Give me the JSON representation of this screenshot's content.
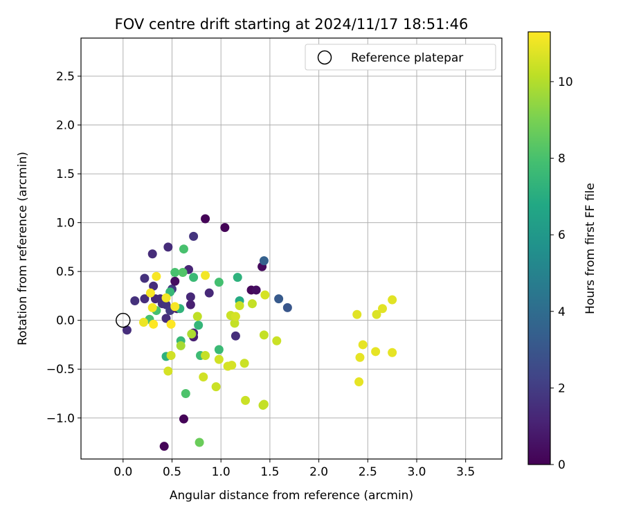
{
  "chart_data": {
    "type": "scatter",
    "title": "FOV centre drift starting at 2024/11/17 18:51:46",
    "xlabel": "Angular distance from reference (arcmin)",
    "ylabel": "Rotation from reference (arcmin)",
    "xlim": [
      -0.43,
      3.87
    ],
    "ylim": [
      -1.42,
      2.89
    ],
    "x_ticks": [
      0.0,
      0.5,
      1.0,
      1.5,
      2.0,
      2.5,
      3.0,
      3.5
    ],
    "x_tick_labels": [
      "0.0",
      "0.5",
      "1.0",
      "1.5",
      "2.0",
      "2.5",
      "3.0",
      "3.5"
    ],
    "y_ticks": [
      -1.0,
      -0.5,
      0.0,
      0.5,
      1.0,
      1.5,
      2.0,
      2.5
    ],
    "y_tick_labels": [
      "−1.0",
      "−0.5",
      "0.0",
      "0.5",
      "1.0",
      "1.5",
      "2.0",
      "2.5"
    ],
    "grid": true,
    "legend": {
      "placement": "top-right",
      "entries": [
        "Reference platepar"
      ]
    },
    "reference_point": {
      "name": "Reference platepar",
      "x": 0.0,
      "y": 0.0
    },
    "colorbar": {
      "label": "Hours from first FF file",
      "colormap": "viridis",
      "range": [
        0,
        11.3
      ],
      "ticks": [
        0,
        2,
        4,
        6,
        8,
        10
      ],
      "tick_labels": [
        "0",
        "2",
        "4",
        "6",
        "8",
        "10"
      ]
    },
    "points": [
      {
        "x": 0.04,
        "y": -0.1,
        "h": 1.5
      },
      {
        "x": 0.12,
        "y": 0.2,
        "h": 1.6
      },
      {
        "x": 0.22,
        "y": 0.43,
        "h": 1.6
      },
      {
        "x": 0.22,
        "y": 0.22,
        "h": 1.5
      },
      {
        "x": 0.3,
        "y": 0.68,
        "h": 1.4
      },
      {
        "x": 0.31,
        "y": 0.35,
        "h": 1.5
      },
      {
        "x": 0.33,
        "y": 0.22,
        "h": 1.3
      },
      {
        "x": 0.38,
        "y": 0.22,
        "h": 1.4
      },
      {
        "x": 0.4,
        "y": 0.17,
        "h": 1.6
      },
      {
        "x": 0.44,
        "y": 0.02,
        "h": 1.5
      },
      {
        "x": 0.46,
        "y": 0.75,
        "h": 1.4
      },
      {
        "x": 0.44,
        "y": 0.16,
        "h": 1.7
      },
      {
        "x": 0.48,
        "y": 0.1,
        "h": 1.9
      },
      {
        "x": 0.5,
        "y": 0.32,
        "h": 1.9
      },
      {
        "x": 0.53,
        "y": 0.4,
        "h": 0.4
      },
      {
        "x": 0.55,
        "y": 0.12,
        "h": 0.8
      },
      {
        "x": 0.67,
        "y": 0.52,
        "h": 1.2
      },
      {
        "x": 0.69,
        "y": 0.24,
        "h": 1.3
      },
      {
        "x": 0.69,
        "y": 0.16,
        "h": 1.0
      },
      {
        "x": 0.72,
        "y": 0.86,
        "h": 1.7
      },
      {
        "x": 0.72,
        "y": -0.17,
        "h": 1.0
      },
      {
        "x": 0.72,
        "y": -0.13,
        "h": 1.1
      },
      {
        "x": 0.84,
        "y": 1.04,
        "h": 0.1
      },
      {
        "x": 0.88,
        "y": 0.28,
        "h": 1.3
      },
      {
        "x": 1.04,
        "y": 0.95,
        "h": 0.1
      },
      {
        "x": 1.15,
        "y": -0.16,
        "h": 1.5
      },
      {
        "x": 1.31,
        "y": 0.31,
        "h": 0.2
      },
      {
        "x": 1.36,
        "y": 0.31,
        "h": 0.4
      },
      {
        "x": 1.42,
        "y": 0.55,
        "h": 0.3
      },
      {
        "x": 1.44,
        "y": 0.61,
        "h": 3.5
      },
      {
        "x": 1.59,
        "y": 0.22,
        "h": 3.2
      },
      {
        "x": 1.68,
        "y": 0.13,
        "h": 3.0
      },
      {
        "x": 0.42,
        "y": -1.29,
        "h": 0.1
      },
      {
        "x": 0.62,
        "y": -1.01,
        "h": 0.1
      },
      {
        "x": 0.27,
        "y": 0.01,
        "h": 7.9
      },
      {
        "x": 0.34,
        "y": 0.1,
        "h": 7.9
      },
      {
        "x": 0.44,
        "y": -0.37,
        "h": 7.2
      },
      {
        "x": 0.48,
        "y": 0.29,
        "h": 7.5
      },
      {
        "x": 0.53,
        "y": 0.49,
        "h": 8.0
      },
      {
        "x": 0.58,
        "y": 0.12,
        "h": 7.3
      },
      {
        "x": 0.59,
        "y": -0.21,
        "h": 7.5
      },
      {
        "x": 0.61,
        "y": 0.49,
        "h": 8.2
      },
      {
        "x": 0.62,
        "y": 0.73,
        "h": 8.0
      },
      {
        "x": 0.64,
        "y": -0.75,
        "h": 8.1
      },
      {
        "x": 0.72,
        "y": 0.44,
        "h": 7.6
      },
      {
        "x": 0.77,
        "y": -0.05,
        "h": 7.4
      },
      {
        "x": 0.78,
        "y": -1.25,
        "h": 8.7
      },
      {
        "x": 0.79,
        "y": -0.36,
        "h": 7.7
      },
      {
        "x": 0.98,
        "y": 0.39,
        "h": 7.9
      },
      {
        "x": 0.98,
        "y": -0.3,
        "h": 7.6
      },
      {
        "x": 1.17,
        "y": 0.44,
        "h": 7.2
      },
      {
        "x": 1.19,
        "y": 0.2,
        "h": 6.9
      },
      {
        "x": 0.21,
        "y": -0.02,
        "h": 11.0
      },
      {
        "x": 0.28,
        "y": 0.28,
        "h": 11.2
      },
      {
        "x": 0.3,
        "y": 0.13,
        "h": 11.1
      },
      {
        "x": 0.31,
        "y": -0.04,
        "h": 11.3
      },
      {
        "x": 0.34,
        "y": 0.45,
        "h": 11.2
      },
      {
        "x": 0.44,
        "y": 0.23,
        "h": 11.1
      },
      {
        "x": 0.49,
        "y": -0.04,
        "h": 11.3
      },
      {
        "x": 0.53,
        "y": 0.14,
        "h": 11.2
      },
      {
        "x": 0.84,
        "y": 0.46,
        "h": 11.1
      },
      {
        "x": 0.46,
        "y": -0.52,
        "h": 10.6
      },
      {
        "x": 0.49,
        "y": -0.36,
        "h": 10.5
      },
      {
        "x": 0.59,
        "y": -0.26,
        "h": 9.8
      },
      {
        "x": 0.7,
        "y": -0.14,
        "h": 9.9
      },
      {
        "x": 0.76,
        "y": 0.04,
        "h": 10.2
      },
      {
        "x": 0.82,
        "y": -0.58,
        "h": 10.5
      },
      {
        "x": 0.84,
        "y": -0.36,
        "h": 10.3
      },
      {
        "x": 0.95,
        "y": -0.68,
        "h": 10.4
      },
      {
        "x": 0.98,
        "y": -0.4,
        "h": 10.5
      },
      {
        "x": 1.07,
        "y": -0.47,
        "h": 10.6
      },
      {
        "x": 1.1,
        "y": 0.05,
        "h": 10.4
      },
      {
        "x": 1.11,
        "y": -0.46,
        "h": 10.6
      },
      {
        "x": 1.14,
        "y": -0.03,
        "h": 10.3
      },
      {
        "x": 1.15,
        "y": 0.04,
        "h": 10.6
      },
      {
        "x": 1.19,
        "y": 0.15,
        "h": 10.4
      },
      {
        "x": 1.24,
        "y": -0.44,
        "h": 10.4
      },
      {
        "x": 1.25,
        "y": -0.82,
        "h": 10.4
      },
      {
        "x": 1.32,
        "y": 0.17,
        "h": 10.3
      },
      {
        "x": 1.43,
        "y": -0.87,
        "h": 10.2
      },
      {
        "x": 1.44,
        "y": -0.86,
        "h": 10.3
      },
      {
        "x": 1.44,
        "y": -0.15,
        "h": 10.3
      },
      {
        "x": 1.45,
        "y": 0.26,
        "h": 10.6
      },
      {
        "x": 1.57,
        "y": -0.21,
        "h": 10.4
      },
      {
        "x": 2.39,
        "y": 0.06,
        "h": 10.8
      },
      {
        "x": 2.41,
        "y": -0.63,
        "h": 10.9
      },
      {
        "x": 2.42,
        "y": -0.38,
        "h": 10.9
      },
      {
        "x": 2.45,
        "y": -0.25,
        "h": 10.9
      },
      {
        "x": 2.58,
        "y": -0.32,
        "h": 10.9
      },
      {
        "x": 2.59,
        "y": 0.06,
        "h": 10.7
      },
      {
        "x": 2.65,
        "y": 0.12,
        "h": 10.8
      },
      {
        "x": 2.75,
        "y": -0.33,
        "h": 10.9
      },
      {
        "x": 2.75,
        "y": 0.21,
        "h": 10.8
      }
    ]
  }
}
